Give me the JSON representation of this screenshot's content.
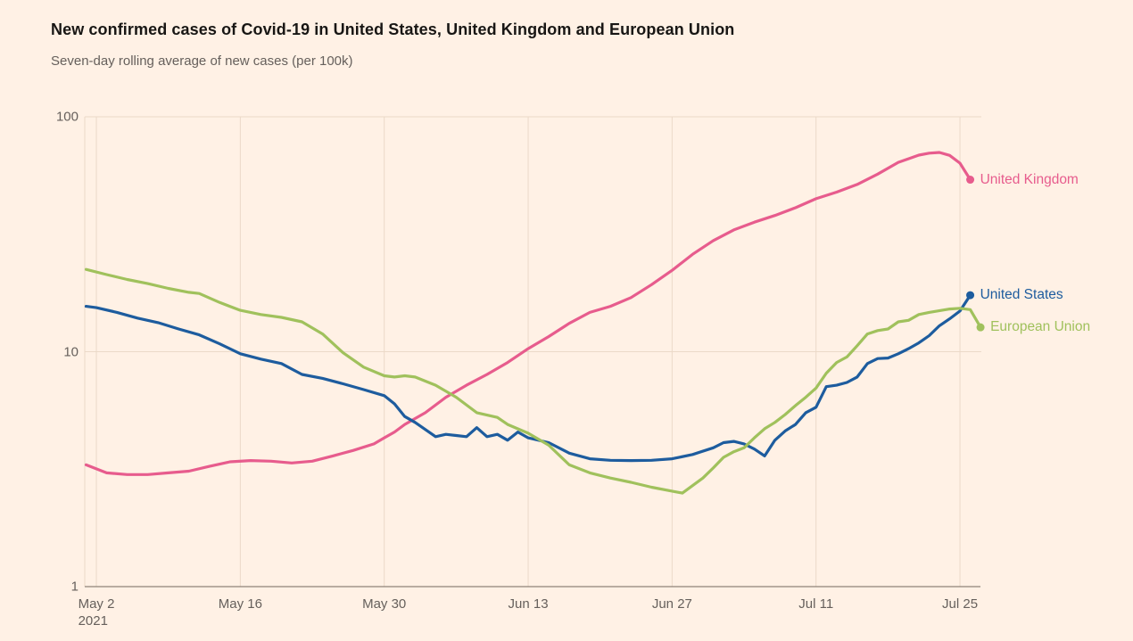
{
  "page": {
    "background": "#FFF1E5"
  },
  "header": {
    "title": "New confirmed cases of Covid-19 in United States, United Kingdom and European Union",
    "subtitle": "Seven-day rolling average of new cases (per 100k)"
  },
  "chart_data": {
    "type": "line",
    "title": "New confirmed cases of Covid-19 in United States, United Kingdom and European Union",
    "subtitle": "Seven-day rolling average of new cases (per 100k)",
    "y_scale": "log",
    "ylim": [
      1,
      100
    ],
    "grid": true,
    "legend_position": "right-of-line-ends",
    "x_unit": "days since 2021-05-01",
    "y_ticks": [
      {
        "value": 1,
        "label": "1"
      },
      {
        "value": 10,
        "label": "10"
      },
      {
        "value": 100,
        "label": "100"
      }
    ],
    "x_ticks": [
      {
        "day": 1,
        "label": "May 2",
        "sublabel": "2021"
      },
      {
        "day": 15,
        "label": "May 16"
      },
      {
        "day": 29,
        "label": "May 30"
      },
      {
        "day": 43,
        "label": "Jun 13"
      },
      {
        "day": 57,
        "label": "Jun 27"
      },
      {
        "day": 71,
        "label": "Jul 11"
      },
      {
        "day": 85,
        "label": "Jul 25"
      }
    ],
    "colors": {
      "united_kingdom": "#E75C8D",
      "united_states": "#1D5C9E",
      "european_union": "#A0C15C"
    },
    "series": [
      {
        "name": "United Kingdom",
        "color": "#E75C8D",
        "points": [
          [
            0,
            3.3
          ],
          [
            2,
            3.05
          ],
          [
            4,
            3.0
          ],
          [
            6,
            3.0
          ],
          [
            8,
            3.05
          ],
          [
            10,
            3.1
          ],
          [
            12,
            3.25
          ],
          [
            14,
            3.4
          ],
          [
            16,
            3.44
          ],
          [
            18,
            3.42
          ],
          [
            20,
            3.36
          ],
          [
            22,
            3.42
          ],
          [
            24,
            3.6
          ],
          [
            26,
            3.8
          ],
          [
            28,
            4.05
          ],
          [
            29,
            4.3
          ],
          [
            30,
            4.55
          ],
          [
            31,
            4.9
          ],
          [
            33,
            5.5
          ],
          [
            35,
            6.4
          ],
          [
            37,
            7.2
          ],
          [
            39,
            8.0
          ],
          [
            41,
            9.0
          ],
          [
            43,
            10.3
          ],
          [
            45,
            11.6
          ],
          [
            47,
            13.2
          ],
          [
            49,
            14.7
          ],
          [
            51,
            15.6
          ],
          [
            53,
            17.0
          ],
          [
            55,
            19.3
          ],
          [
            57,
            22.2
          ],
          [
            59,
            26.0
          ],
          [
            61,
            29.7
          ],
          [
            63,
            33.0
          ],
          [
            65,
            35.6
          ],
          [
            67,
            38.0
          ],
          [
            69,
            41.0
          ],
          [
            71,
            44.8
          ],
          [
            73,
            47.8
          ],
          [
            75,
            51.5
          ],
          [
            77,
            57.0
          ],
          [
            79,
            64.0
          ],
          [
            81,
            68.7
          ],
          [
            82,
            70.0
          ],
          [
            83,
            70.5
          ],
          [
            84,
            68.5
          ],
          [
            85,
            63.5
          ],
          [
            86,
            54.0
          ]
        ]
      },
      {
        "name": "United States",
        "color": "#1D5C9E",
        "points": [
          [
            0,
            15.6
          ],
          [
            1,
            15.4
          ],
          [
            3,
            14.7
          ],
          [
            5,
            13.9
          ],
          [
            7,
            13.3
          ],
          [
            9,
            12.5
          ],
          [
            11,
            11.8
          ],
          [
            13,
            10.8
          ],
          [
            15,
            9.8
          ],
          [
            17,
            9.3
          ],
          [
            19,
            8.9
          ],
          [
            21,
            8.0
          ],
          [
            23,
            7.7
          ],
          [
            25,
            7.3
          ],
          [
            27,
            6.9
          ],
          [
            29,
            6.5
          ],
          [
            30,
            6.0
          ],
          [
            31,
            5.3
          ],
          [
            32,
            5.0
          ],
          [
            34,
            4.35
          ],
          [
            35,
            4.45
          ],
          [
            36,
            4.4
          ],
          [
            37,
            4.35
          ],
          [
            38,
            4.75
          ],
          [
            39,
            4.35
          ],
          [
            40,
            4.45
          ],
          [
            41,
            4.2
          ],
          [
            42,
            4.55
          ],
          [
            43,
            4.3
          ],
          [
            45,
            4.1
          ],
          [
            47,
            3.7
          ],
          [
            49,
            3.5
          ],
          [
            51,
            3.45
          ],
          [
            53,
            3.44
          ],
          [
            55,
            3.45
          ],
          [
            57,
            3.5
          ],
          [
            59,
            3.65
          ],
          [
            61,
            3.9
          ],
          [
            62,
            4.1
          ],
          [
            63,
            4.15
          ],
          [
            64,
            4.05
          ],
          [
            65,
            3.85
          ],
          [
            66,
            3.6
          ],
          [
            67,
            4.2
          ],
          [
            68,
            4.6
          ],
          [
            69,
            4.9
          ],
          [
            70,
            5.5
          ],
          [
            71,
            5.8
          ],
          [
            72,
            7.1
          ],
          [
            73,
            7.2
          ],
          [
            74,
            7.4
          ],
          [
            75,
            7.8
          ],
          [
            76,
            8.9
          ],
          [
            77,
            9.35
          ],
          [
            78,
            9.4
          ],
          [
            79,
            9.8
          ],
          [
            80,
            10.3
          ],
          [
            81,
            10.9
          ],
          [
            82,
            11.7
          ],
          [
            83,
            12.9
          ],
          [
            84,
            13.8
          ],
          [
            85,
            14.9
          ],
          [
            86,
            17.4
          ]
        ]
      },
      {
        "name": "European Union",
        "color": "#A0C15C",
        "points": [
          [
            0,
            22.4
          ],
          [
            2,
            21.3
          ],
          [
            4,
            20.3
          ],
          [
            6,
            19.5
          ],
          [
            8,
            18.6
          ],
          [
            10,
            17.9
          ],
          [
            11,
            17.7
          ],
          [
            13,
            16.2
          ],
          [
            15,
            15.0
          ],
          [
            17,
            14.4
          ],
          [
            19,
            14.0
          ],
          [
            21,
            13.4
          ],
          [
            23,
            11.9
          ],
          [
            25,
            9.9
          ],
          [
            27,
            8.6
          ],
          [
            29,
            7.9
          ],
          [
            30,
            7.8
          ],
          [
            31,
            7.9
          ],
          [
            32,
            7.8
          ],
          [
            34,
            7.2
          ],
          [
            36,
            6.4
          ],
          [
            38,
            5.5
          ],
          [
            40,
            5.25
          ],
          [
            41,
            4.9
          ],
          [
            43,
            4.5
          ],
          [
            45,
            4.0
          ],
          [
            47,
            3.3
          ],
          [
            49,
            3.05
          ],
          [
            51,
            2.9
          ],
          [
            53,
            2.78
          ],
          [
            55,
            2.65
          ],
          [
            57,
            2.55
          ],
          [
            58,
            2.5
          ],
          [
            60,
            2.9
          ],
          [
            61,
            3.2
          ],
          [
            62,
            3.55
          ],
          [
            63,
            3.75
          ],
          [
            64,
            3.9
          ],
          [
            65,
            4.3
          ],
          [
            66,
            4.7
          ],
          [
            67,
            5.0
          ],
          [
            68,
            5.4
          ],
          [
            69,
            5.9
          ],
          [
            70,
            6.4
          ],
          [
            71,
            7.0
          ],
          [
            72,
            8.1
          ],
          [
            73,
            9.0
          ],
          [
            74,
            9.5
          ],
          [
            75,
            10.6
          ],
          [
            76,
            11.9
          ],
          [
            77,
            12.3
          ],
          [
            78,
            12.5
          ],
          [
            79,
            13.4
          ],
          [
            80,
            13.6
          ],
          [
            81,
            14.4
          ],
          [
            82,
            14.7
          ],
          [
            84,
            15.2
          ],
          [
            85,
            15.3
          ],
          [
            86,
            15.1
          ],
          [
            87,
            12.7
          ]
        ]
      }
    ]
  }
}
